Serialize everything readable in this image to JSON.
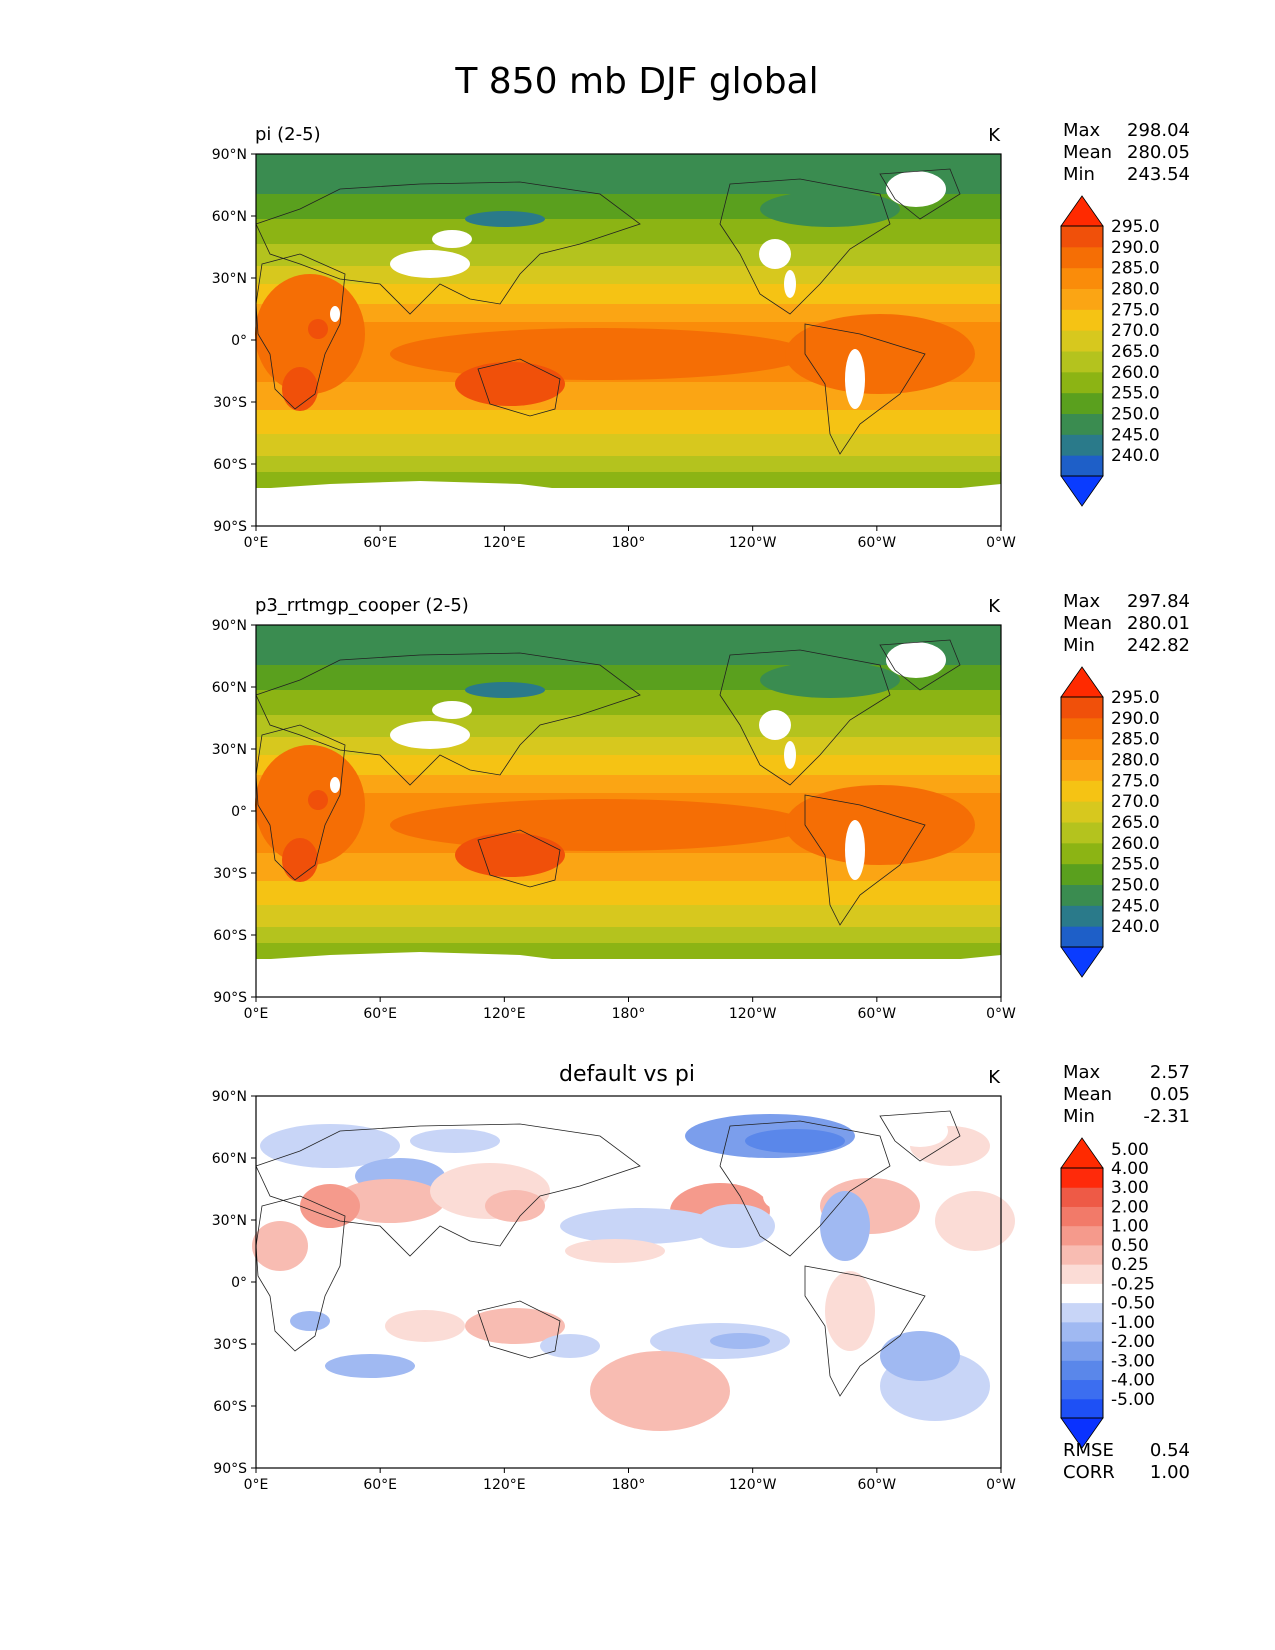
{
  "figure_title": "T 850 mb DJF global",
  "chart_data": [
    {
      "type": "heatmap",
      "title": "pi (2-5)",
      "units": "K",
      "stats": [
        [
          "Max",
          "298.04"
        ],
        [
          "Mean",
          "280.05"
        ],
        [
          "Min",
          "243.54"
        ]
      ],
      "colorbar": [
        "240.0",
        "245.0",
        "250.0",
        "255.0",
        "260.0",
        "265.0",
        "270.0",
        "275.0",
        "280.0",
        "285.0",
        "290.0",
        "295.0"
      ],
      "colors": [
        "#0a3cff",
        "#1e5fc8",
        "#2a7a8a",
        "#3a8c50",
        "#5aa01e",
        "#8cb414",
        "#b4c31e",
        "#d7c81e",
        "#f5c314",
        "#fba514",
        "#fa8c0a",
        "#f56e05",
        "#f0500a",
        "#ff2a00"
      ],
      "xticks": [
        "0°E",
        "60°E",
        "120°E",
        "180°",
        "120°W",
        "60°W",
        "0°W"
      ],
      "yticks": [
        "90°N",
        "60°N",
        "30°N",
        "0°",
        "30°S",
        "60°S",
        "90°S"
      ],
      "range": [
        240,
        298
      ]
    },
    {
      "type": "heatmap",
      "title": "p3_rrtmgp_cooper (2-5)",
      "units": "K",
      "stats": [
        [
          "Max",
          "297.84"
        ],
        [
          "Mean",
          "280.01"
        ],
        [
          "Min",
          "242.82"
        ]
      ],
      "colorbar": [
        "240.0",
        "245.0",
        "250.0",
        "255.0",
        "260.0",
        "265.0",
        "270.0",
        "275.0",
        "280.0",
        "285.0",
        "290.0",
        "295.0"
      ],
      "colors": [
        "#0a3cff",
        "#1e5fc8",
        "#2a7a8a",
        "#3a8c50",
        "#5aa01e",
        "#8cb414",
        "#b4c31e",
        "#d7c81e",
        "#f5c314",
        "#fba514",
        "#fa8c0a",
        "#f56e05",
        "#f0500a",
        "#ff2a00"
      ],
      "xticks": [
        "0°E",
        "60°E",
        "120°E",
        "180°",
        "120°W",
        "60°W",
        "0°W"
      ],
      "yticks": [
        "90°N",
        "60°N",
        "30°N",
        "0°",
        "30°S",
        "60°S",
        "90°S"
      ],
      "range": [
        240,
        298
      ]
    },
    {
      "type": "heatmap",
      "title": "default vs pi",
      "units": "K",
      "stats": [
        [
          "Max",
          "2.57"
        ],
        [
          "Mean",
          "0.05"
        ],
        [
          "Min",
          "-2.31"
        ]
      ],
      "colorbar": [
        "-5.00",
        "-4.00",
        "-3.00",
        "-2.00",
        "-1.00",
        "-0.50",
        "-0.25",
        "0.25",
        "0.50",
        "1.00",
        "2.00",
        "3.00",
        "4.00",
        "5.00"
      ],
      "colors": [
        "#0a32ff",
        "#1e50f5",
        "#3c6ef0",
        "#5a87ea",
        "#7b9eec",
        "#a0b9f2",
        "#c8d5f7",
        "#ffffff",
        "#fbdcd6",
        "#f8bcb2",
        "#f59a8c",
        "#f27a69",
        "#ee5a46",
        "#ff2a0a",
        "#ff2a00"
      ],
      "xticks": [
        "0°E",
        "60°E",
        "120°E",
        "180°",
        "120°W",
        "60°W",
        "0°W"
      ],
      "yticks": [
        "90°N",
        "60°N",
        "30°N",
        "0°",
        "30°S",
        "60°S",
        "90°S"
      ],
      "rmse": [
        [
          "RMSE",
          "0.54"
        ],
        [
          "CORR",
          "1.00"
        ]
      ],
      "range": [
        -2.31,
        2.57
      ]
    }
  ]
}
